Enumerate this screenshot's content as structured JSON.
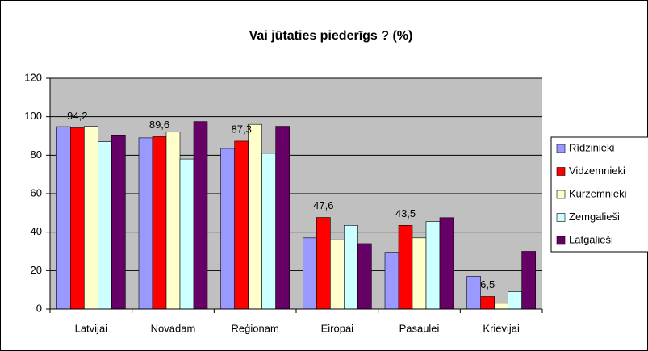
{
  "chart_data": {
    "type": "bar",
    "title": "Vai jūtaties piederīgs ? (%)",
    "categories": [
      "Latvijai",
      "Novadam",
      "Reģionam",
      "Eiropai",
      "Pasaulei",
      "Krievijai"
    ],
    "series": [
      {
        "name": "Rīdzinieki",
        "color": "#9999ff",
        "values": [
          94.8,
          89,
          83.5,
          37,
          29.5,
          17
        ]
      },
      {
        "name": "Vidzemnieki",
        "color": "#ff0000",
        "values": [
          94.2,
          89.6,
          87.3,
          47.6,
          43.5,
          6.5
        ],
        "value_labels": [
          "94,2",
          "89,6",
          "87,3",
          "47,6",
          "43,5",
          "6,5"
        ]
      },
      {
        "name": "Kurzemnieki",
        "color": "#ffffcc",
        "values": [
          95,
          92,
          96,
          36,
          37,
          3
        ]
      },
      {
        "name": "Zemgalieši",
        "color": "#ccffff",
        "values": [
          87,
          78,
          81,
          43.5,
          45.5,
          9
        ]
      },
      {
        "name": "Latgalieši",
        "color": "#660066",
        "values": [
          90.5,
          97.5,
          95,
          34,
          47.5,
          30
        ]
      }
    ],
    "ylim": [
      0,
      120
    ],
    "yticks": [
      0,
      20,
      40,
      60,
      80,
      100,
      120
    ],
    "grid": true,
    "legend": "right"
  }
}
